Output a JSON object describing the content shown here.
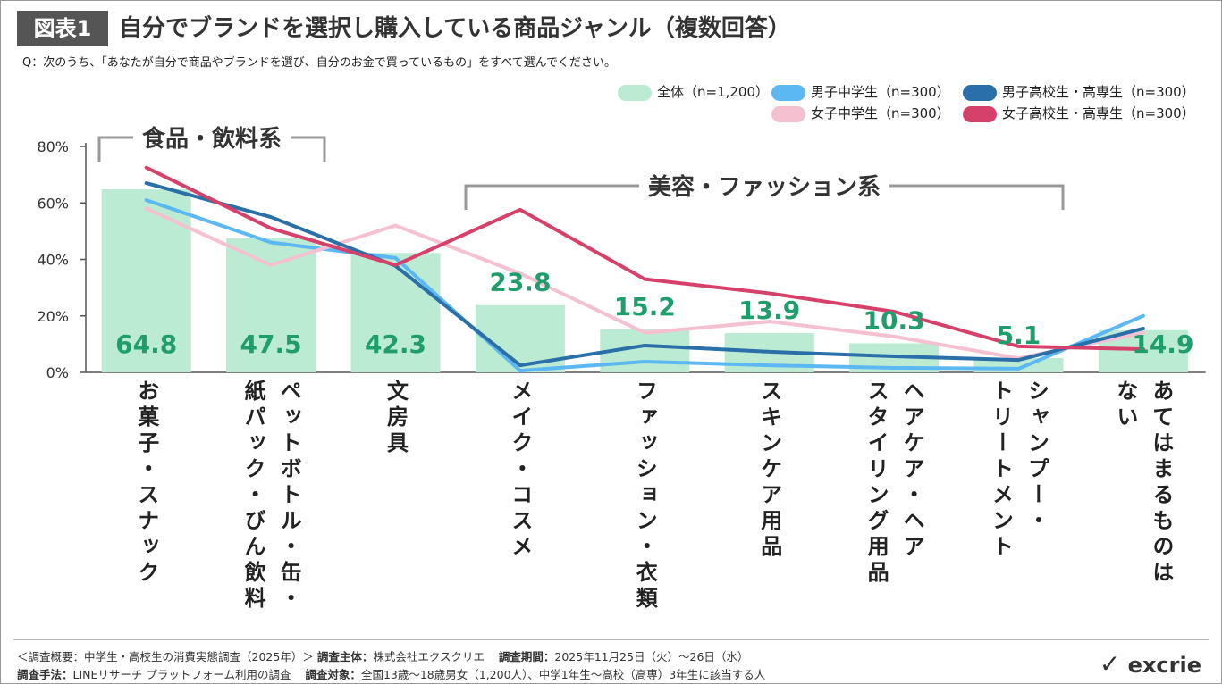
{
  "badge": "図表1",
  "question": "Q：次のうち、「あなたが自分で商品やブランドを選び、自分のお金で買っているもの」をすべて選んでください。",
  "footer": {
    "line1": [
      "＜調査概要：中学生・高校生の消費実態調査（2025年）＞",
      "調査主体：",
      "株式会社エクスクリエ",
      "調査期間：",
      "2025年11月25日（火）～26日（水）"
    ],
    "line2": [
      "調査手法：",
      "LINEリサーチ プラットフォーム利用の調査",
      "調査対象：",
      "全国13歳～18歳男女（1,200人）、中学1年生～高校（高専）3年生に該当する人"
    ],
    "logo": "excrie"
  },
  "chart_data": {
    "type": "combo",
    "title": "自分でブランドを選択し購入している商品ジャンル（複数回答）",
    "annotations": [
      "食品・飲料系",
      "美容・ファッション系"
    ],
    "categories": [
      "お菓子・スナック",
      "ペットボトル・缶・\n紙パック・びん飲料",
      "文房具",
      "メイク・コスメ",
      "ファッション・衣類",
      "スキンケア用品",
      "ヘアケア・ヘア\nスタイリング用品",
      "シャンプー・\nトリートメント",
      "あてはまるものは\nない"
    ],
    "series": [
      {
        "name": "全体（n=1,200）",
        "type": "bar",
        "color": "#bcebd3",
        "label_color": "#1f9e6b",
        "values": [
          64.8,
          47.5,
          42.3,
          23.8,
          15.2,
          13.9,
          10.3,
          5.1,
          14.9
        ]
      },
      {
        "name": "男子中学生（n=300）",
        "type": "line",
        "color": "#5cb8f2",
        "values": [
          61,
          46,
          40.5,
          0.6,
          3.8,
          2.5,
          1.6,
          1.3,
          20
        ]
      },
      {
        "name": "女子中学生（n=300）",
        "type": "line",
        "color": "#f5c1d1",
        "values": [
          58,
          38,
          52,
          35,
          14,
          18,
          12.7,
          5,
          14
        ]
      },
      {
        "name": "男子高校生・高専生（n=300）",
        "type": "line",
        "color": "#2a6fa8",
        "values": [
          67,
          55,
          37.7,
          2.5,
          9.5,
          7.3,
          5.7,
          4.4,
          15.5
        ]
      },
      {
        "name": "女子高校生・高専生（n=300）",
        "type": "line",
        "color": "#d6416a",
        "values": [
          72.5,
          51,
          38,
          57.6,
          33,
          28,
          21.5,
          9.2,
          8.2
        ]
      }
    ],
    "ylim": [
      0,
      80
    ],
    "yticks": [
      {
        "value": 0,
        "label": "0%"
      },
      {
        "value": 20,
        "label": "20%"
      },
      {
        "value": 40,
        "label": "40%"
      },
      {
        "value": 60,
        "label": "60%"
      },
      {
        "value": 80,
        "label": "80%"
      }
    ],
    "grid": false
  }
}
